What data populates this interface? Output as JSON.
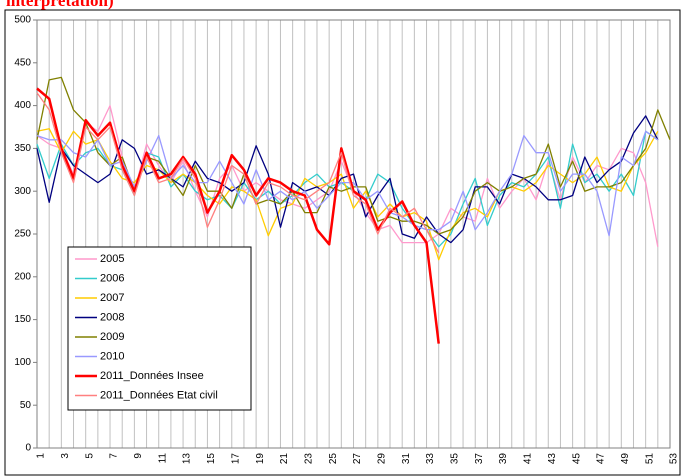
{
  "chart_data": {
    "type": "line",
    "title": "interprétation)",
    "categories": [
      "1",
      null,
      "3",
      null,
      "5",
      null,
      "7",
      null,
      "9",
      null,
      "11",
      null,
      "13",
      null,
      "15",
      null,
      "17",
      null,
      "19",
      null,
      "21",
      null,
      "23",
      null,
      "25",
      null,
      "27",
      null,
      "29",
      null,
      "31",
      null,
      "33",
      null,
      "35",
      null,
      "37",
      null,
      "39",
      null,
      "41",
      null,
      "43",
      null,
      "45",
      null,
      "47",
      null,
      "49",
      null,
      "51",
      null,
      "53"
    ],
    "ylim": [
      0,
      500
    ],
    "yticks": [
      0,
      50,
      100,
      150,
      200,
      250,
      300,
      350,
      400,
      450,
      500
    ],
    "grid": "x",
    "series": [
      {
        "name": "2005",
        "color": "#ff99cc",
        "values": [
          365,
          355,
          350,
          320,
          380,
          370,
          400,
          340,
          300,
          355,
          330,
          310,
          335,
          300,
          270,
          315,
          330,
          300,
          310,
          300,
          290,
          285,
          280,
          290,
          300,
          335,
          300,
          275,
          255,
          260,
          240,
          240,
          240,
          250,
          280,
          270,
          265,
          315,
          280,
          300,
          315,
          290,
          335,
          290,
          340,
          310,
          330,
          325,
          350,
          345,
          310,
          235,
          null
        ]
      },
      {
        "name": "2006",
        "color": "#33cccc",
        "values": [
          355,
          315,
          355,
          330,
          345,
          350,
          330,
          325,
          295,
          345,
          340,
          305,
          320,
          300,
          290,
          295,
          280,
          310,
          290,
          300,
          285,
          295,
          310,
          320,
          305,
          310,
          300,
          290,
          320,
          310,
          280,
          260,
          255,
          235,
          250,
          285,
          315,
          260,
          295,
          310,
          305,
          320,
          340,
          280,
          355,
          310,
          320,
          300,
          320,
          295,
          370,
          360,
          null
        ]
      },
      {
        "name": "2007",
        "color": "#ffcc00",
        "values": [
          370,
          373,
          345,
          370,
          355,
          360,
          335,
          315,
          310,
          330,
          325,
          310,
          320,
          310,
          295,
          285,
          305,
          300,
          290,
          248,
          280,
          285,
          315,
          305,
          310,
          320,
          280,
          300,
          270,
          285,
          270,
          275,
          265,
          220,
          255,
          275,
          280,
          270,
          300,
          305,
          300,
          310,
          330,
          320,
          310,
          320,
          340,
          305,
          300,
          330,
          345,
          370,
          null
        ]
      },
      {
        "name": "2008",
        "color": "#000080",
        "values": [
          350,
          287,
          350,
          330,
          320,
          310,
          320,
          360,
          350,
          320,
          325,
          315,
          305,
          335,
          315,
          310,
          300,
          310,
          353,
          320,
          258,
          310,
          300,
          305,
          295,
          315,
          320,
          270,
          295,
          315,
          250,
          245,
          270,
          250,
          240,
          255,
          305,
          305,
          285,
          320,
          315,
          305,
          290,
          290,
          295,
          340,
          310,
          325,
          335,
          368,
          388,
          360,
          null
        ]
      },
      {
        "name": "2009",
        "color": "#808000",
        "values": [
          360,
          430,
          433,
          395,
          380,
          345,
          330,
          340,
          300,
          340,
          335,
          315,
          295,
          330,
          300,
          300,
          280,
          320,
          285,
          290,
          285,
          300,
          275,
          275,
          305,
          300,
          305,
          305,
          265,
          270,
          265,
          265,
          260,
          250,
          255,
          270,
          300,
          310,
          300,
          305,
          315,
          320,
          355,
          305,
          335,
          300,
          305,
          305,
          310,
          330,
          350,
          395,
          360
        ]
      },
      {
        "name": "2010",
        "color": "#9999ff",
        "values": [
          365,
          360,
          360,
          345,
          340,
          360,
          330,
          335,
          305,
          335,
          365,
          315,
          330,
          310,
          310,
          335,
          310,
          285,
          325,
          290,
          300,
          290,
          300,
          280,
          295,
          310,
          310,
          290,
          300,
          275,
          270,
          260,
          255,
          255,
          265,
          300,
          255,
          275,
          300,
          320,
          365,
          345,
          345,
          300,
          320,
          320,
          300,
          248,
          340,
          330,
          370,
          360,
          null
        ]
      },
      {
        "name": "2011_Données Insee",
        "color": "#ff0000",
        "values": [
          420,
          408,
          350,
          315,
          383,
          365,
          380,
          330,
          300,
          345,
          315,
          320,
          340,
          320,
          275,
          300,
          342,
          325,
          295,
          315,
          310,
          300,
          295,
          255,
          238,
          350,
          300,
          290,
          255,
          275,
          288,
          260,
          240,
          122,
          null,
          null,
          null,
          null,
          null,
          null,
          null,
          null,
          null,
          null,
          null,
          null,
          null,
          null,
          null,
          null,
          null,
          null,
          null
        ]
      },
      {
        "name": "2011_Données Etat civil",
        "color": "#ff8080",
        "values": [
          415,
          395,
          345,
          310,
          375,
          360,
          375,
          325,
          295,
          340,
          310,
          315,
          338,
          315,
          258,
          290,
          330,
          320,
          285,
          310,
          305,
          295,
          290,
          300,
          310,
          345,
          295,
          285,
          250,
          280,
          270,
          280,
          255,
          228,
          null,
          null,
          null,
          null,
          null,
          null,
          null,
          null,
          null,
          null,
          null,
          null,
          null,
          null,
          null,
          null,
          null,
          null,
          null
        ]
      }
    ]
  }
}
